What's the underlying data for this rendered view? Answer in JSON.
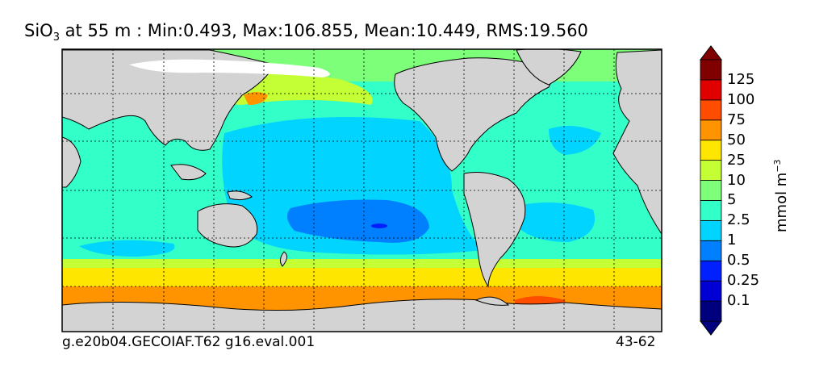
{
  "title": {
    "species": "SiO",
    "subscript": "3",
    "rest": " at 55 m : Min:0.493, Max:106.855, Mean:10.449, RMS:19.560"
  },
  "footer": {
    "case": "g.e20b04.GECOIAF.T62 g16.eval.001",
    "years": "43-62"
  },
  "colorbar": {
    "units_main": "mmol m",
    "units_sup": "−3",
    "levels": [
      "0.1",
      "0.25",
      "0.5",
      "1",
      "2.5",
      "5",
      "10",
      "25",
      "50",
      "75",
      "100",
      "125"
    ],
    "colors": [
      "#00007f",
      "#0000d5",
      "#0020ff",
      "#0080ff",
      "#00d4ff",
      "#33ffc8",
      "#7dff7a",
      "#c3ff34",
      "#ffe600",
      "#ff9400",
      "#ff4d00",
      "#e00000",
      "#800000"
    ]
  },
  "map_colors": {
    "land": "#d3d3d3",
    "ice": "#ffffff"
  }
}
